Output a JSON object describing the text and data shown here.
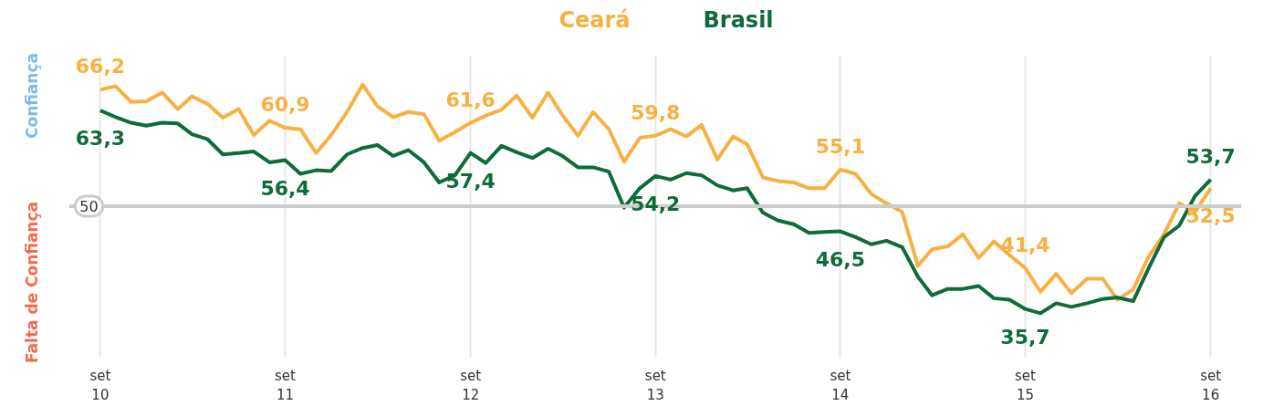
{
  "chart_data": {
    "type": "line",
    "x": [
      "2010-09",
      "2010-10",
      "2010-11",
      "2010-12",
      "2011-01",
      "2011-02",
      "2011-03",
      "2011-04",
      "2011-05",
      "2011-06",
      "2011-07",
      "2011-08",
      "2011-09",
      "2011-10",
      "2011-11",
      "2011-12",
      "2012-01",
      "2012-02",
      "2012-03",
      "2012-04",
      "2012-05",
      "2012-06",
      "2012-07",
      "2012-08",
      "2012-09",
      "2012-10",
      "2012-11",
      "2012-12",
      "2013-01",
      "2013-02",
      "2013-03",
      "2013-04",
      "2013-05",
      "2013-06",
      "2013-07",
      "2013-08",
      "2013-09",
      "2013-10",
      "2013-11",
      "2013-12",
      "2014-01",
      "2014-02",
      "2014-03",
      "2014-04",
      "2014-05",
      "2014-06",
      "2014-07",
      "2014-08",
      "2014-09",
      "2014-10",
      "2014-11",
      "2014-12",
      "2015-01",
      "2015-02",
      "2015-03",
      "2015-04",
      "2015-05",
      "2015-06",
      "2015-07",
      "2015-08",
      "2015-09",
      "2015-10",
      "2015-11",
      "2015-12",
      "2016-01",
      "2016-02",
      "2016-03",
      "2016-04",
      "2016-05",
      "2016-06",
      "2016-07",
      "2016-08",
      "2016-09"
    ],
    "series": [
      {
        "name": "Ceará",
        "color": "#f9b042",
        "values": [
          66.2,
          66.7,
          64.5,
          64.6,
          65.8,
          63.5,
          65.3,
          64.2,
          62.3,
          63.5,
          59.9,
          61.9,
          60.9,
          60.7,
          57.4,
          59.9,
          63.1,
          66.9,
          63.9,
          62.4,
          63.1,
          62.8,
          59.1,
          60.3,
          61.6,
          62.6,
          63.4,
          65.4,
          62.3,
          65.8,
          62.7,
          59.8,
          63.1,
          60.7,
          56.2,
          59.5,
          59.8,
          60.7,
          59.7,
          61.3,
          56.5,
          59.7,
          58.6,
          54.0,
          53.5,
          53.3,
          52.5,
          52.5,
          55.1,
          54.5,
          51.7,
          50.4,
          49.2,
          41.7,
          44.0,
          44.4,
          46.1,
          42.8,
          45.1,
          43.2,
          41.4,
          38.1,
          40.6,
          37.9,
          39.9,
          39.9,
          37.0,
          38.4,
          42.9,
          46.1,
          50.4,
          49.2,
          52.5
        ],
        "value_labels": [
          "66,2",
          null,
          null,
          null,
          null,
          null,
          null,
          null,
          null,
          null,
          null,
          null,
          "60,9",
          null,
          null,
          null,
          null,
          null,
          null,
          null,
          null,
          null,
          null,
          null,
          "61,6",
          null,
          null,
          null,
          null,
          null,
          null,
          null,
          null,
          null,
          null,
          null,
          "59,8",
          null,
          null,
          null,
          null,
          null,
          null,
          null,
          null,
          null,
          null,
          null,
          "55,1",
          null,
          null,
          null,
          null,
          null,
          null,
          null,
          null,
          null,
          null,
          null,
          "41,4",
          null,
          null,
          null,
          null,
          null,
          null,
          null,
          null,
          null,
          null,
          null,
          "52,5"
        ]
      },
      {
        "name": "Brasil",
        "color": "#0f6b3a",
        "values": [
          63.3,
          62.4,
          61.6,
          61.2,
          61.6,
          61.5,
          60.0,
          59.3,
          57.2,
          57.4,
          57.6,
          56.1,
          56.4,
          54.5,
          55.0,
          54.9,
          57.2,
          58.1,
          58.5,
          57.0,
          57.8,
          56.1,
          53.3,
          54.3,
          57.4,
          56.0,
          58.4,
          57.5,
          56.7,
          58.0,
          57.0,
          55.4,
          55.4,
          54.8,
          49.8,
          52.5,
          54.2,
          53.7,
          54.6,
          54.3,
          52.9,
          52.2,
          52.5,
          49.1,
          48.0,
          47.5,
          46.3,
          46.4,
          46.5,
          45.7,
          44.7,
          45.2,
          44.3,
          40.2,
          37.6,
          38.5,
          38.5,
          38.9,
          37.2,
          37.0,
          35.7,
          35.1,
          36.5,
          36.0,
          36.5,
          37.1,
          37.3,
          36.8,
          41.3,
          45.7,
          47.3,
          51.4,
          53.7
        ],
        "value_labels": [
          "63,3",
          null,
          null,
          null,
          null,
          null,
          null,
          null,
          null,
          null,
          null,
          null,
          "56,4",
          null,
          null,
          null,
          null,
          null,
          null,
          null,
          null,
          null,
          null,
          null,
          "57,4",
          null,
          null,
          null,
          null,
          null,
          null,
          null,
          null,
          null,
          null,
          null,
          "54,2",
          null,
          null,
          null,
          null,
          null,
          null,
          null,
          null,
          null,
          null,
          null,
          "46,5",
          null,
          null,
          null,
          null,
          null,
          null,
          null,
          null,
          null,
          null,
          null,
          "35,7",
          null,
          null,
          null,
          null,
          null,
          null,
          null,
          null,
          null,
          null,
          null,
          "53,7"
        ]
      }
    ],
    "xlim": [
      "2010-07",
      "2016-11"
    ],
    "xticks": [
      {
        "value": "2010-09",
        "label": "set\n10"
      },
      {
        "value": "2011-09",
        "label": "set\n11"
      },
      {
        "value": "2012-09",
        "label": "set\n12"
      },
      {
        "value": "2013-09",
        "label": "set\n13"
      },
      {
        "value": "2014-09",
        "label": "set\n14"
      },
      {
        "value": "2015-09",
        "label": "set\n15"
      },
      {
        "value": "2016-09",
        "label": "set\n16"
      }
    ],
    "ylim": [
      29,
      71
    ],
    "ref_lines": [
      {
        "axis": "y",
        "value": 50,
        "label": "50",
        "color": "#cccccc"
      }
    ],
    "annotations": [
      "Confiança",
      "Falta de Confiança"
    ],
    "grid": "x",
    "marker": "none",
    "line_style": "solid"
  }
}
